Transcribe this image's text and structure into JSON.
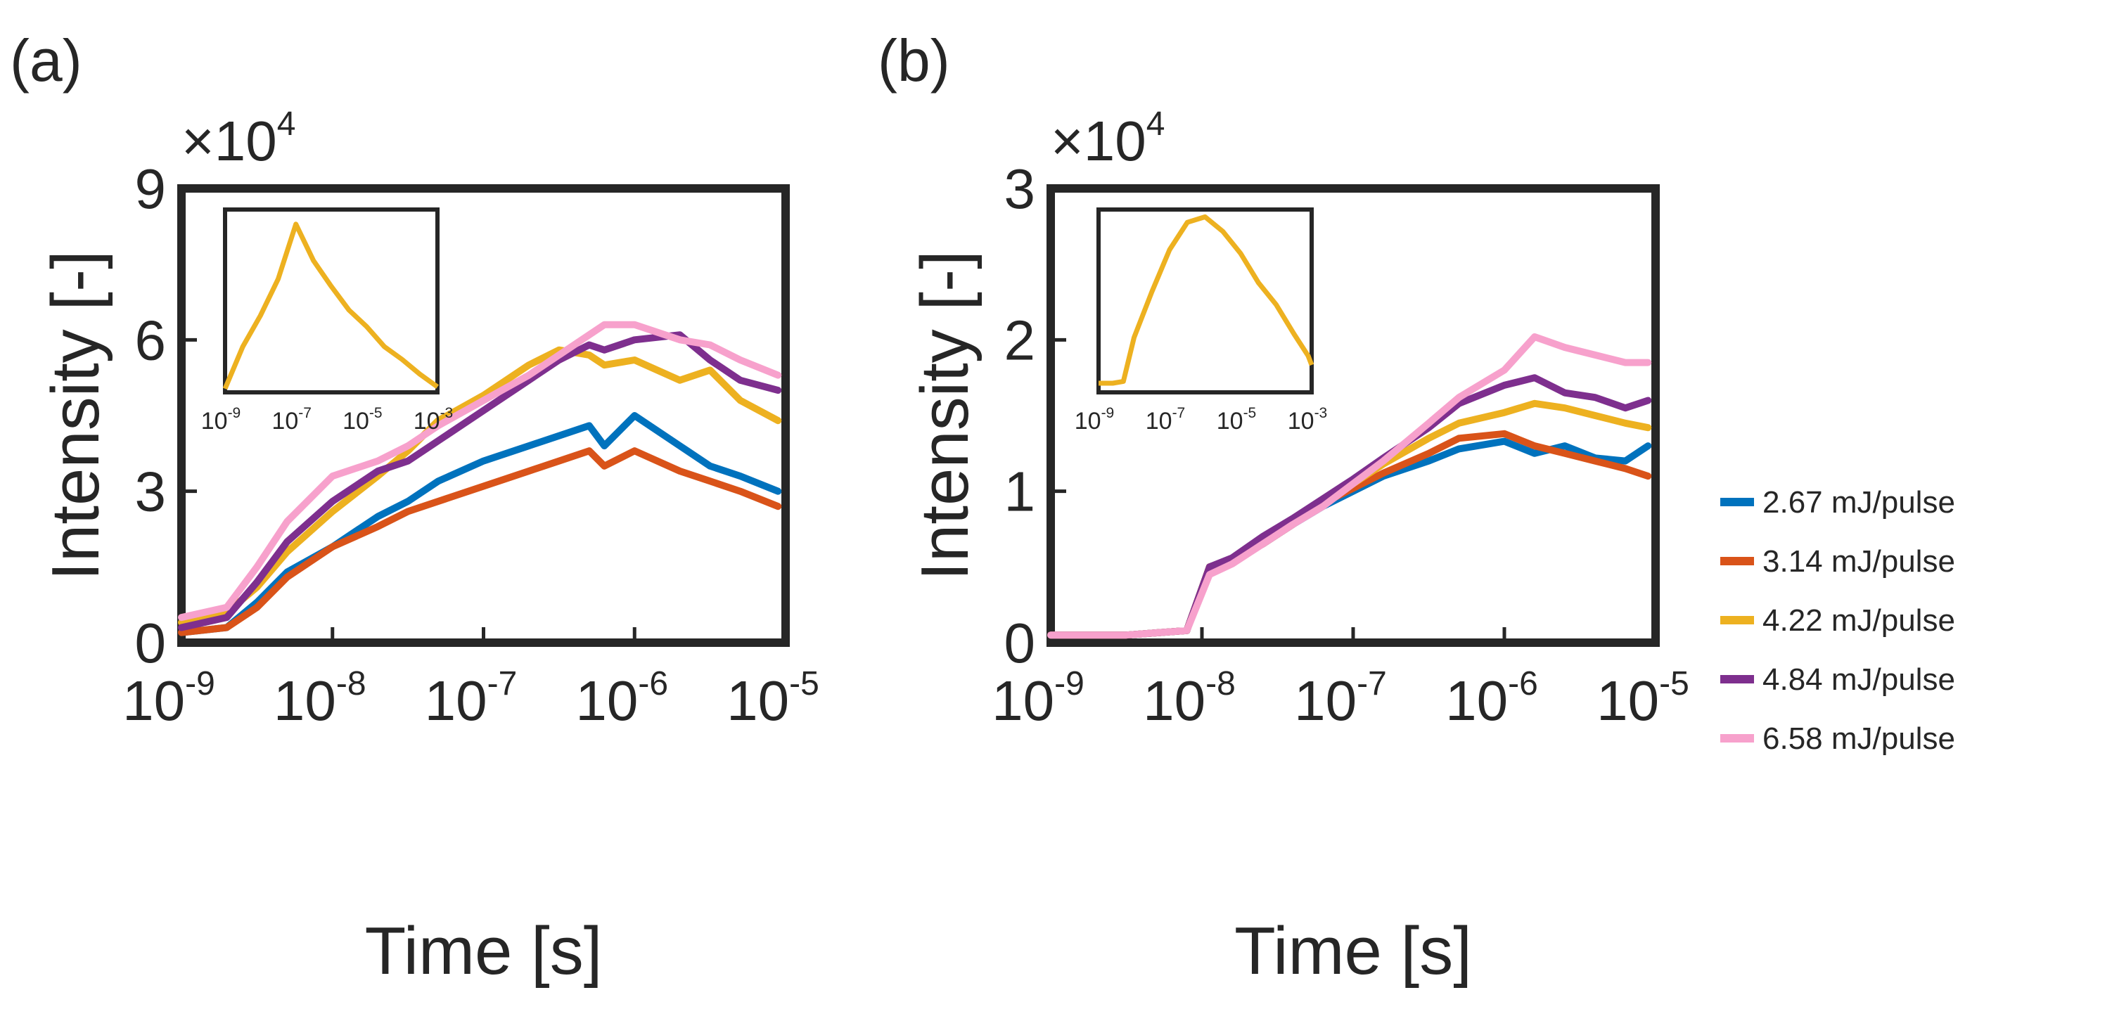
{
  "colors": {
    "2.67": "#0072BD",
    "3.14": "#D95319",
    "4.22": "#EDB120",
    "4.84": "#7E2F8E",
    "6.58": "#F7A1CC",
    "axis": "#262626"
  },
  "legend": [
    {
      "label": "2.67 mJ/pulse",
      "color": "#0072BD"
    },
    {
      "label": "3.14 mJ/pulse",
      "color": "#D95319"
    },
    {
      "label": "4.22 mJ/pulse",
      "color": "#EDB120"
    },
    {
      "label": "4.84 mJ/pulse",
      "color": "#7E2F8E"
    },
    {
      "label": "6.58 mJ/pulse",
      "color": "#F7A1CC"
    }
  ],
  "chart_data": [
    {
      "panel_label": "(a)",
      "type": "line",
      "xscale": "log",
      "xlim_exp": [
        -9,
        -5
      ],
      "x_ticks": [
        {
          "base": "10",
          "exp": "-9"
        },
        {
          "base": "10",
          "exp": "-8"
        },
        {
          "base": "10",
          "exp": "-7"
        },
        {
          "base": "10",
          "exp": "-6"
        },
        {
          "base": "10",
          "exp": "-5"
        }
      ],
      "ylim": [
        0,
        9
      ],
      "y_ticks": [
        "0",
        "3",
        "6",
        "9"
      ],
      "y_scale_label": {
        "prefix": "×10",
        "exp": "4"
      },
      "xlabel": "Time [s]",
      "ylabel": "Intensity [-]",
      "series": [
        {
          "name": "2.67 mJ/pulse",
          "x_exp": [
            -9,
            -8.7,
            -8.5,
            -8.3,
            -8,
            -7.7,
            -7.5,
            -7.3,
            -7,
            -6.7,
            -6.5,
            -6.3,
            -6.2,
            -6,
            -5.7,
            -5.5,
            -5.3,
            -5.05
          ],
          "y": [
            0.2,
            0.3,
            0.8,
            1.4,
            1.9,
            2.5,
            2.8,
            3.2,
            3.6,
            3.9,
            4.1,
            4.3,
            3.9,
            4.5,
            3.9,
            3.5,
            3.3,
            3.0
          ]
        },
        {
          "name": "3.14 mJ/pulse",
          "x_exp": [
            -9,
            -8.7,
            -8.5,
            -8.3,
            -8,
            -7.7,
            -7.5,
            -7.3,
            -7,
            -6.7,
            -6.5,
            -6.3,
            -6.2,
            -6,
            -5.7,
            -5.5,
            -5.3,
            -5.05
          ],
          "y": [
            0.2,
            0.3,
            0.7,
            1.3,
            1.9,
            2.3,
            2.6,
            2.8,
            3.1,
            3.4,
            3.6,
            3.8,
            3.5,
            3.8,
            3.4,
            3.2,
            3.0,
            2.7
          ]
        },
        {
          "name": "4.22 mJ/pulse",
          "x_exp": [
            -9,
            -8.7,
            -8.5,
            -8.3,
            -8,
            -7.7,
            -7.5,
            -7.3,
            -7,
            -6.7,
            -6.5,
            -6.3,
            -6.2,
            -6,
            -5.7,
            -5.5,
            -5.3,
            -5.05
          ],
          "y": [
            0.4,
            0.6,
            1.1,
            1.8,
            2.6,
            3.3,
            3.8,
            4.4,
            4.9,
            5.5,
            5.8,
            5.7,
            5.5,
            5.6,
            5.2,
            5.4,
            4.8,
            4.4
          ]
        },
        {
          "name": "4.84 mJ/pulse",
          "x_exp": [
            -9,
            -8.7,
            -8.5,
            -8.3,
            -8,
            -7.7,
            -7.5,
            -7.3,
            -7,
            -6.7,
            -6.5,
            -6.3,
            -6.2,
            -6,
            -5.7,
            -5.5,
            -5.3,
            -5.05
          ],
          "y": [
            0.3,
            0.5,
            1.2,
            2.0,
            2.8,
            3.4,
            3.6,
            4.0,
            4.6,
            5.2,
            5.6,
            5.9,
            5.8,
            6.0,
            6.1,
            5.6,
            5.2,
            5.0
          ]
        },
        {
          "name": "6.58 mJ/pulse",
          "x_exp": [
            -9,
            -8.7,
            -8.5,
            -8.3,
            -8,
            -7.7,
            -7.5,
            -7.3,
            -7,
            -6.7,
            -6.5,
            -6.3,
            -6.2,
            -6,
            -5.7,
            -5.5,
            -5.3,
            -5.05
          ],
          "y": [
            0.5,
            0.7,
            1.5,
            2.4,
            3.3,
            3.6,
            3.9,
            4.3,
            4.8,
            5.3,
            5.7,
            6.1,
            6.3,
            6.3,
            6.0,
            5.9,
            5.6,
            5.3
          ]
        }
      ],
      "inset": {
        "x_ticks": [
          {
            "base": "10",
            "exp": "-9"
          },
          {
            "base": "10",
            "exp": "-7"
          },
          {
            "base": "10",
            "exp": "-5"
          },
          {
            "base": "10",
            "exp": "-3"
          }
        ],
        "xlim_exp": [
          -9,
          -3
        ],
        "ylim": [
          0,
          1
        ],
        "color": "#EDB120",
        "x_exp": [
          -9,
          -8.5,
          -8,
          -7.5,
          -7,
          -6.5,
          -6,
          -5.5,
          -5,
          -4.5,
          -4,
          -3.5,
          -3
        ],
        "y": [
          0.02,
          0.25,
          0.42,
          0.62,
          0.92,
          0.72,
          0.58,
          0.45,
          0.36,
          0.25,
          0.18,
          0.1,
          0.03
        ]
      }
    },
    {
      "panel_label": "(b)",
      "type": "line",
      "xscale": "log",
      "xlim_exp": [
        -9,
        -5
      ],
      "x_ticks": [
        {
          "base": "10",
          "exp": "-9"
        },
        {
          "base": "10",
          "exp": "-8"
        },
        {
          "base": "10",
          "exp": "-7"
        },
        {
          "base": "10",
          "exp": "-6"
        },
        {
          "base": "10",
          "exp": "-5"
        }
      ],
      "ylim": [
        0,
        3
      ],
      "y_ticks": [
        "0",
        "1",
        "2",
        "3"
      ],
      "y_scale_label": {
        "prefix": "×10",
        "exp": "4"
      },
      "xlabel": "Time [s]",
      "ylabel": "Intensity [-]",
      "series": [
        {
          "name": "2.67 mJ/pulse",
          "x_exp": [
            -9,
            -8.5,
            -8.1,
            -7.95,
            -7.8,
            -7.6,
            -7.4,
            -7.2,
            -7,
            -6.8,
            -6.5,
            -6.3,
            -6,
            -5.8,
            -5.6,
            -5.4,
            -5.2,
            -5.05
          ],
          "y": [
            0.05,
            0.05,
            0.08,
            0.5,
            0.55,
            0.65,
            0.78,
            0.9,
            1.0,
            1.1,
            1.2,
            1.28,
            1.33,
            1.25,
            1.3,
            1.22,
            1.2,
            1.3
          ]
        },
        {
          "name": "3.14 mJ/pulse",
          "x_exp": [
            -9,
            -8.5,
            -8.1,
            -7.95,
            -7.8,
            -7.6,
            -7.4,
            -7.2,
            -7,
            -6.8,
            -6.5,
            -6.3,
            -6,
            -5.8,
            -5.6,
            -5.4,
            -5.2,
            -5.05
          ],
          "y": [
            0.05,
            0.05,
            0.08,
            0.5,
            0.55,
            0.65,
            0.78,
            0.92,
            1.02,
            1.12,
            1.25,
            1.35,
            1.38,
            1.3,
            1.25,
            1.2,
            1.15,
            1.1
          ]
        },
        {
          "name": "4.22 mJ/pulse",
          "x_exp": [
            -9,
            -8.5,
            -8.1,
            -7.95,
            -7.8,
            -7.6,
            -7.4,
            -7.2,
            -7,
            -6.8,
            -6.5,
            -6.3,
            -6,
            -5.8,
            -5.6,
            -5.4,
            -5.2,
            -5.05
          ],
          "y": [
            0.05,
            0.05,
            0.08,
            0.5,
            0.55,
            0.68,
            0.8,
            0.92,
            1.05,
            1.18,
            1.35,
            1.45,
            1.52,
            1.58,
            1.55,
            1.5,
            1.45,
            1.42
          ]
        },
        {
          "name": "4.84 mJ/pulse",
          "x_exp": [
            -9,
            -8.5,
            -8.1,
            -7.95,
            -7.8,
            -7.6,
            -7.4,
            -7.2,
            -7,
            -6.8,
            -6.5,
            -6.3,
            -6,
            -5.8,
            -5.6,
            -5.4,
            -5.2,
            -5.05
          ],
          "y": [
            0.05,
            0.05,
            0.08,
            0.5,
            0.56,
            0.7,
            0.82,
            0.95,
            1.08,
            1.22,
            1.42,
            1.58,
            1.7,
            1.75,
            1.65,
            1.62,
            1.55,
            1.6
          ]
        },
        {
          "name": "6.58 mJ/pulse",
          "x_exp": [
            -9,
            -8.5,
            -8.1,
            -7.95,
            -7.8,
            -7.6,
            -7.4,
            -7.2,
            -7,
            -6.8,
            -6.5,
            -6.3,
            -6,
            -5.8,
            -5.6,
            -5.4,
            -5.2,
            -5.05
          ],
          "y": [
            0.05,
            0.05,
            0.08,
            0.45,
            0.52,
            0.65,
            0.78,
            0.9,
            1.05,
            1.2,
            1.45,
            1.62,
            1.8,
            2.02,
            1.95,
            1.9,
            1.85,
            1.85
          ]
        }
      ],
      "inset": {
        "x_ticks": [
          {
            "base": "10",
            "exp": "-9"
          },
          {
            "base": "10",
            "exp": "-7"
          },
          {
            "base": "10",
            "exp": "-5"
          },
          {
            "base": "10",
            "exp": "-3"
          }
        ],
        "xlim_exp": [
          -9,
          -3
        ],
        "ylim": [
          0,
          1
        ],
        "color": "#EDB120",
        "x_exp": [
          -9,
          -8.6,
          -8.3,
          -8,
          -7.5,
          -7,
          -6.5,
          -6,
          -5.5,
          -5,
          -4.5,
          -4,
          -3.5,
          -3.1,
          -3
        ],
        "y": [
          0.05,
          0.05,
          0.06,
          0.3,
          0.55,
          0.78,
          0.93,
          0.96,
          0.88,
          0.76,
          0.6,
          0.48,
          0.32,
          0.2,
          0.15
        ]
      }
    }
  ]
}
